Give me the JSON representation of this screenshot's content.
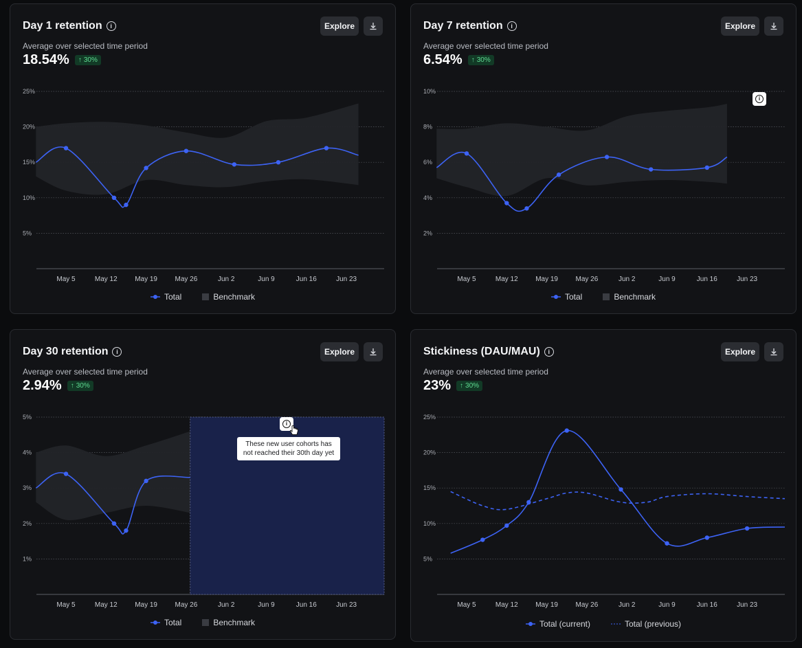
{
  "cards": [
    {
      "title": "Day 1 retention",
      "explore_label": "Explore",
      "subtitle": "Average over selected time period",
      "metric": "18.54%",
      "badge": "30%",
      "legend": [
        "Total",
        "Benchmark"
      ]
    },
    {
      "title": "Day 7 retention",
      "explore_label": "Explore",
      "subtitle": "Average over selected time period",
      "metric": "6.54%",
      "badge": "30%",
      "legend": [
        "Total",
        "Benchmark"
      ]
    },
    {
      "title": "Day 30 retention",
      "explore_label": "Explore",
      "subtitle": "Average over selected time period",
      "metric": "2.94%",
      "badge": "30%",
      "legend": [
        "Total",
        "Benchmark"
      ],
      "tooltip": "These new user cohorts has not reached their 30th day yet"
    },
    {
      "title": "Stickiness (DAU/MAU)",
      "explore_label": "Explore",
      "subtitle": "Average over selected time period",
      "metric": "23%",
      "badge": "30%",
      "legend": [
        "Total (current)",
        "Total (previous)"
      ]
    }
  ],
  "colors": {
    "line": "#3d63f5",
    "benchmark": "#232428",
    "highlight": "#19224a",
    "badge_bg": "#123a26",
    "badge_fg": "#5fdc92"
  },
  "chart_data": [
    {
      "type": "line",
      "title": "Day 1 retention",
      "categories": [
        "May 5",
        "May 12",
        "May 19",
        "May 26",
        "Jun 2",
        "Jun 9",
        "Jun 16",
        "Jun 23"
      ],
      "yticks": [
        "25%",
        "20%",
        "15%",
        "10%",
        "5%"
      ],
      "ylim": [
        0,
        25
      ],
      "grid": true,
      "legend_position": "bottom",
      "series": [
        {
          "name": "Total",
          "x": [
            -0.75,
            0,
            1.2,
            1.5,
            2,
            3,
            4.2,
            5.3,
            6.5,
            7.3
          ],
          "values": [
            15,
            17,
            10,
            9,
            14.2,
            16.6,
            14.7,
            15,
            17,
            16
          ]
        },
        {
          "name": "Benchmark",
          "type": "band",
          "x": [
            -0.75,
            0,
            1,
            2,
            3,
            4,
            5,
            6,
            7.3
          ],
          "upper": [
            20,
            20.5,
            20.7,
            20.2,
            19.2,
            18.5,
            20.8,
            21.3,
            23.3
          ],
          "lower": [
            13,
            11,
            10.5,
            12.5,
            11.8,
            11.5,
            12.3,
            12.6,
            11.8
          ]
        }
      ]
    },
    {
      "type": "line",
      "title": "Day 7 retention",
      "categories": [
        "May 5",
        "May 12",
        "May 19",
        "May 26",
        "Jun 2",
        "Jun 9",
        "Jun 16",
        "Jun 23"
      ],
      "yticks": [
        "10%",
        "8%",
        "6%",
        "4%",
        "2%"
      ],
      "ylim": [
        0,
        10
      ],
      "grid": true,
      "legend_position": "bottom",
      "series": [
        {
          "name": "Total",
          "x": [
            -0.75,
            0,
            1,
            1.5,
            2.3,
            3.5,
            4.6,
            6,
            6.5
          ],
          "values": [
            5.7,
            6.5,
            3.7,
            3.4,
            5.3,
            6.3,
            5.6,
            5.7,
            6.3
          ]
        },
        {
          "name": "Benchmark",
          "type": "band",
          "x": [
            -0.75,
            0,
            1,
            2,
            3,
            4,
            5,
            6,
            6.5
          ],
          "upper": [
            7.9,
            7.9,
            8.2,
            8,
            7.8,
            8.6,
            8.9,
            9.1,
            9.3
          ],
          "lower": [
            5.1,
            4.6,
            4.1,
            5.1,
            4.7,
            4.9,
            5,
            4.9,
            4.8
          ]
        }
      ]
    },
    {
      "type": "line",
      "title": "Day 30 retention",
      "categories": [
        "May 5",
        "May 12",
        "May 19",
        "May 26",
        "Jun 2",
        "Jun 9",
        "Jun 16",
        "Jun 23"
      ],
      "yticks": [
        "5%",
        "4%",
        "3%",
        "2%",
        "1%"
      ],
      "ylim": [
        0,
        5
      ],
      "grid": true,
      "legend_position": "bottom",
      "highlight_from": 3.1,
      "series": [
        {
          "name": "Total",
          "x": [
            -0.75,
            0,
            1.2,
            1.5,
            2,
            3.1
          ],
          "values": [
            3,
            3.4,
            2,
            1.8,
            3.2,
            3.3
          ]
        },
        {
          "name": "Benchmark",
          "type": "band",
          "x": [
            -0.75,
            0,
            1,
            2,
            3.1
          ],
          "upper": [
            4,
            4.2,
            3.9,
            4.2,
            4.6
          ],
          "lower": [
            2.6,
            2.1,
            2.3,
            2.5,
            2.3
          ]
        }
      ]
    },
    {
      "type": "line",
      "title": "Stickiness (DAU/MAU)",
      "categories": [
        "May 5",
        "May 12",
        "May 19",
        "May 26",
        "Jun 2",
        "Jun 9",
        "Jun 16",
        "Jun 23"
      ],
      "yticks": [
        "25%",
        "20%",
        "15%",
        "10%",
        "5%"
      ],
      "ylim": [
        0,
        25
      ],
      "grid": true,
      "legend_position": "bottom",
      "series": [
        {
          "name": "Total (current)",
          "x": [
            -0.4,
            0.4,
            1,
            1.55,
            2.5,
            3.85,
            5,
            6,
            7,
            8.3
          ],
          "values": [
            5.8,
            7.7,
            9.7,
            13,
            23.1,
            14.8,
            7.2,
            8,
            9.3,
            9.5
          ]
        },
        {
          "name": "Total (previous)",
          "dashed": true,
          "x": [
            -0.4,
            0.4,
            1,
            2,
            2.5,
            3,
            3.85,
            4.5,
            5,
            6,
            7,
            8.3
          ],
          "values": [
            14.5,
            12.5,
            12,
            13.5,
            14.3,
            14.3,
            13,
            13,
            13.8,
            14.2,
            13.8,
            13.5
          ]
        }
      ]
    }
  ]
}
